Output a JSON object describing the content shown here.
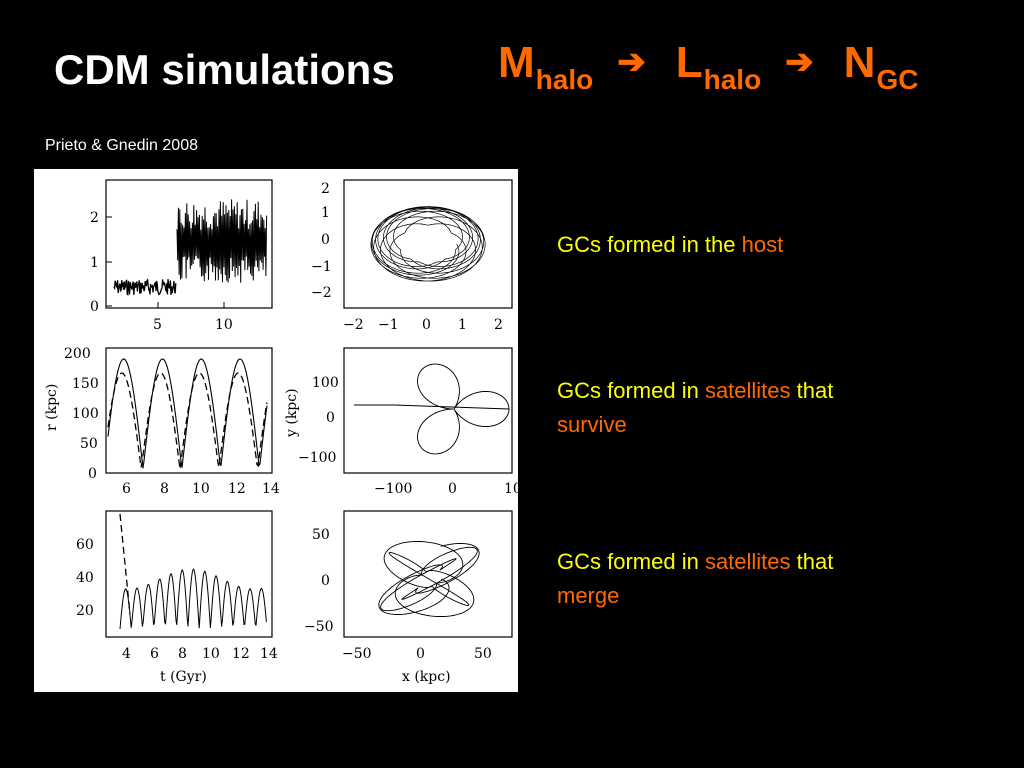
{
  "slide": {
    "title": "CDM simulations",
    "citation": "Prieto & Gnedin 2008",
    "colors": {
      "background": "#000000",
      "title": "#ffffff",
      "accent": "#ff6a00",
      "caption": "#ffff00"
    }
  },
  "formula": {
    "terms": [
      {
        "main": "M",
        "sub": "halo"
      },
      {
        "main": "L",
        "sub": "halo"
      },
      {
        "main": "N",
        "sub": "GC"
      }
    ],
    "arrow_icon": "right-arrow-icon",
    "arrow_glyph": "➔"
  },
  "captions": [
    {
      "pre": "GCs formed in the ",
      "highlight": "host",
      "post": "",
      "tail": ""
    },
    {
      "pre": "GCs formed in ",
      "highlight": "satellites",
      "post": " that ",
      "tail": "survive"
    },
    {
      "pre": "GCs formed in ",
      "highlight": "satellites",
      "post": " that ",
      "tail": "merge"
    }
  ],
  "figure": {
    "labels": {
      "r_label": "r (kpc)",
      "y_label": "y (kpc)",
      "t_label": "t (Gyr)",
      "x_label": "x (kpc)"
    },
    "ticks": {
      "p1_y": [
        "2",
        "1",
        "0"
      ],
      "p1_x": [
        "5",
        "10"
      ],
      "p2_y": [
        "2",
        "1",
        "0",
        "−1",
        "−2"
      ],
      "p2_x": [
        "−2",
        "−1",
        "0",
        "1",
        "2"
      ],
      "p3_y": [
        "200",
        "150",
        "100",
        "50",
        "0"
      ],
      "p3_x": [
        "6",
        "8",
        "10",
        "12",
        "14"
      ],
      "p4_y": [
        "100",
        "0",
        "−100"
      ],
      "p4_x": [
        "−100",
        "0",
        "10"
      ],
      "p5_y": [
        "60",
        "40",
        "20"
      ],
      "p5_x": [
        "4",
        "6",
        "8",
        "10",
        "12",
        "14"
      ],
      "p6_y": [
        "50",
        "0",
        "−50"
      ],
      "p6_x": [
        "−50",
        "0",
        "50"
      ]
    }
  }
}
